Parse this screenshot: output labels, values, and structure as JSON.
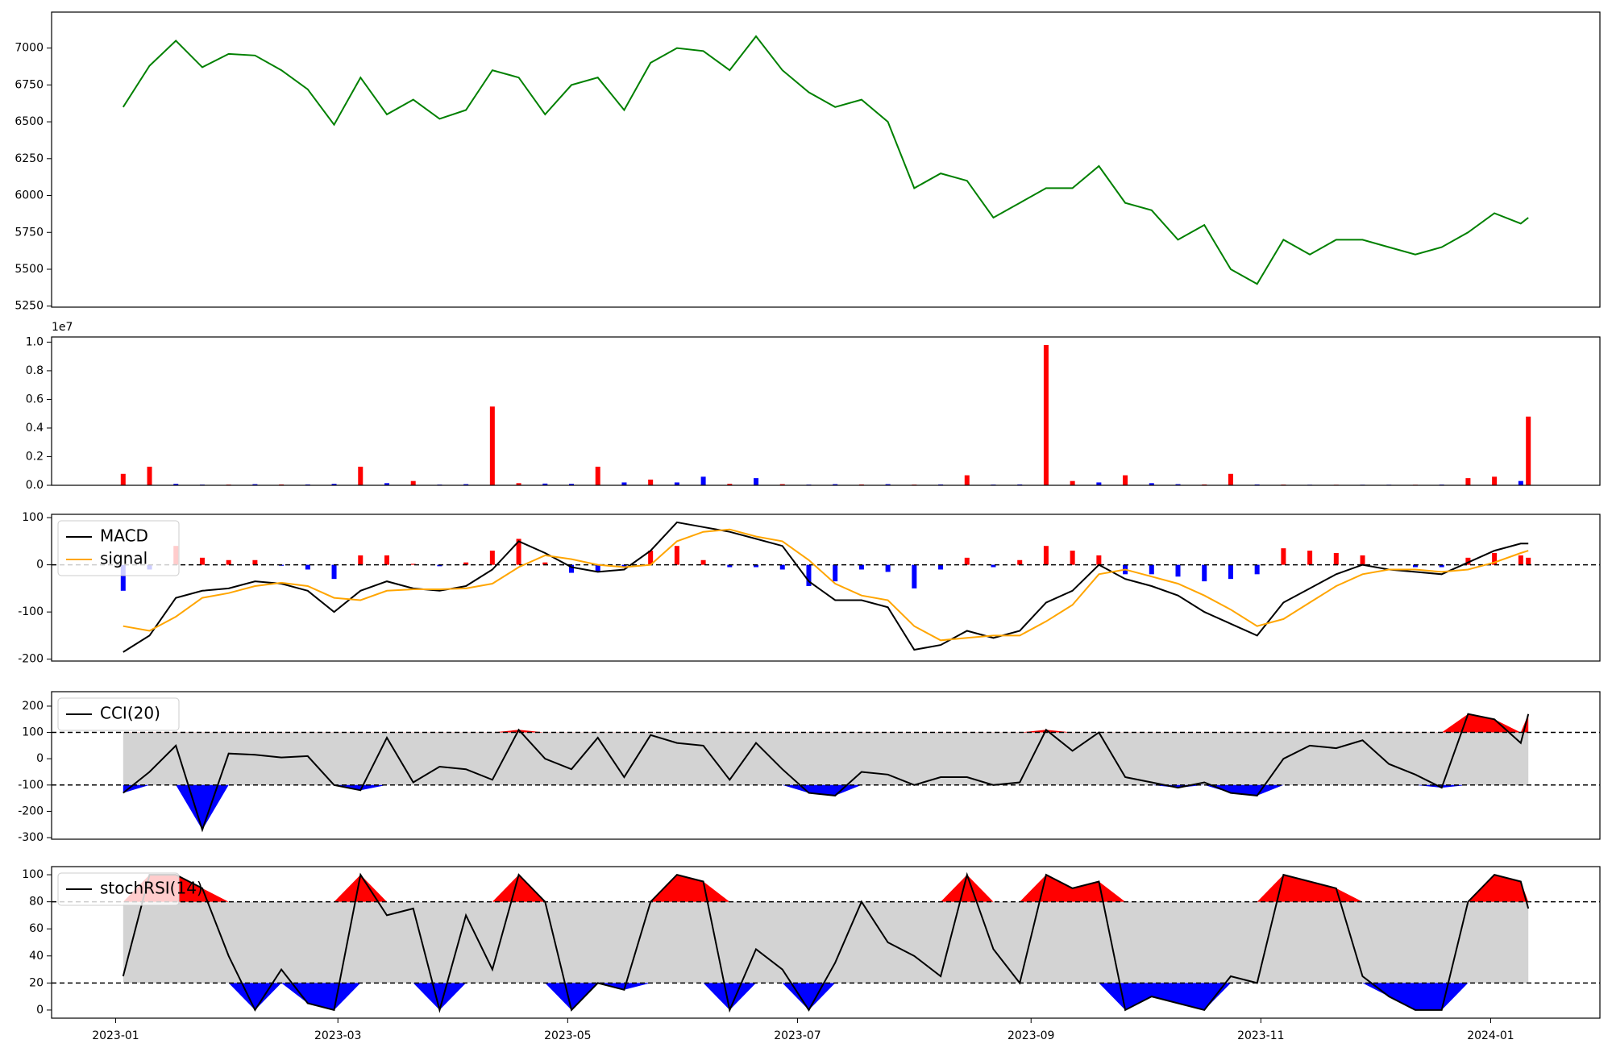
{
  "chart_data": [
    {
      "type": "line",
      "x": [
        "2023-01-03",
        "2023-01-10",
        "2023-01-17",
        "2023-01-24",
        "2023-01-31",
        "2023-02-07",
        "2023-02-14",
        "2023-02-21",
        "2023-02-28",
        "2023-03-07",
        "2023-03-14",
        "2023-03-21",
        "2023-03-28",
        "2023-04-04",
        "2023-04-11",
        "2023-04-18",
        "2023-04-25",
        "2023-05-02",
        "2023-05-09",
        "2023-05-16",
        "2023-05-23",
        "2023-05-30",
        "2023-06-06",
        "2023-06-13",
        "2023-06-20",
        "2023-06-27",
        "2023-07-04",
        "2023-07-11",
        "2023-07-18",
        "2023-07-25",
        "2023-08-01",
        "2023-08-08",
        "2023-08-15",
        "2023-08-22",
        "2023-08-29",
        "2023-09-05",
        "2023-09-12",
        "2023-09-19",
        "2023-09-26",
        "2023-10-03",
        "2023-10-10",
        "2023-10-17",
        "2023-10-24",
        "2023-10-31",
        "2023-11-07",
        "2023-11-14",
        "2023-11-21",
        "2023-11-28",
        "2023-12-05",
        "2023-12-12",
        "2023-12-19",
        "2023-12-26",
        "2024-01-02",
        "2024-01-09",
        "2024-01-11"
      ],
      "xlim": [
        "2022-12-15",
        "2024-01-30"
      ],
      "series": [
        {
          "color": "#008000",
          "values": [
            6600,
            6880,
            7050,
            6870,
            6960,
            6950,
            6850,
            6720,
            6480,
            6800,
            6550,
            6650,
            6520,
            6580,
            6850,
            6800,
            6550,
            6750,
            6800,
            6580,
            6900,
            7000,
            6980,
            6850,
            7080,
            6850,
            6700,
            6600,
            6650,
            6500,
            6050,
            6150,
            6100,
            5850,
            5950,
            6050,
            6050,
            6200,
            5950,
            5900,
            5700,
            5800,
            5500,
            5400,
            5700,
            5600,
            5700,
            5700,
            5650,
            5600,
            5650,
            5750,
            5880,
            5810,
            5850
          ]
        }
      ],
      "ylim": [
        5243,
        7244
      ],
      "yticks": [
        5250,
        5500,
        5750,
        6000,
        6250,
        6500,
        6750,
        7000
      ]
    },
    {
      "type": "bar",
      "values": [
        800000,
        1300000,
        100000,
        50000,
        50000,
        80000,
        60000,
        60000,
        100000,
        1300000,
        150000,
        300000,
        50000,
        80000,
        5500000,
        150000,
        120000,
        100000,
        1300000,
        200000,
        400000,
        200000,
        600000,
        100000,
        500000,
        80000,
        50000,
        80000,
        60000,
        80000,
        50000,
        60000,
        700000,
        50000,
        60000,
        9800000,
        300000,
        200000,
        700000,
        150000,
        80000,
        60000,
        800000,
        60000,
        50000,
        40000,
        40000,
        40000,
        40000,
        40000,
        50000,
        500000,
        600000,
        300000,
        4800000
      ],
      "colors": [
        "red",
        "red",
        "blue",
        "blue",
        "red",
        "blue",
        "red",
        "blue",
        "blue",
        "red",
        "blue",
        "red",
        "blue",
        "blue",
        "red",
        "red",
        "blue",
        "blue",
        "red",
        "blue",
        "red",
        "blue",
        "blue",
        "red",
        "blue",
        "red",
        "blue",
        "blue",
        "red",
        "blue",
        "red",
        "blue",
        "red",
        "blue",
        "blue",
        "red",
        "red",
        "blue",
        "red",
        "blue",
        "blue",
        "red",
        "red",
        "blue",
        "red",
        "blue",
        "red",
        "blue",
        "blue",
        "red",
        "blue",
        "red",
        "red",
        "blue",
        "red"
      ],
      "ylim": [
        0,
        10360000
      ],
      "yticks": [
        {
          "value": 0,
          "label": "0.0"
        },
        {
          "value": 2000000,
          "label": "0.2"
        },
        {
          "value": 4000000,
          "label": "0.4"
        },
        {
          "value": 6000000,
          "label": "0.6"
        },
        {
          "value": 8000000,
          "label": "0.8"
        },
        {
          "value": 10000000,
          "label": "1.0"
        }
      ],
      "offset_label": "1e7"
    },
    {
      "type": "macd",
      "series": [
        {
          "name": "MACD",
          "color": "#000000",
          "values": [
            -185,
            -150,
            -70,
            -55,
            -50,
            -35,
            -40,
            -55,
            -100,
            -55,
            -35,
            -50,
            -55,
            -45,
            -10,
            50,
            25,
            -5,
            -15,
            -10,
            30,
            90,
            80,
            70,
            55,
            40,
            -35,
            -75,
            -75,
            -90,
            -180,
            -170,
            -140,
            -155,
            -140,
            -80,
            -55,
            0,
            -30,
            -45,
            -65,
            -100,
            -125,
            -150,
            -80,
            -50,
            -20,
            0,
            -10,
            -15,
            -20,
            5,
            30,
            45,
            45
          ]
        },
        {
          "name": "signal",
          "color": "#ffa500",
          "values": [
            -130,
            -140,
            -110,
            -70,
            -60,
            -45,
            -38,
            -45,
            -70,
            -75,
            -55,
            -52,
            -52,
            -50,
            -40,
            -5,
            20,
            12,
            0,
            -5,
            0,
            50,
            70,
            75,
            60,
            50,
            10,
            -40,
            -65,
            -75,
            -130,
            -160,
            -155,
            -150,
            -150,
            -120,
            -85,
            -20,
            -10,
            -25,
            -40,
            -65,
            -95,
            -130,
            -115,
            -80,
            -45,
            -20,
            -10,
            -10,
            -15,
            -10,
            5,
            25,
            30
          ]
        }
      ],
      "histogram": [
        -55,
        -10,
        40,
        15,
        10,
        10,
        -2,
        -10,
        -30,
        20,
        20,
        2,
        -3,
        5,
        30,
        55,
        5,
        -17,
        -15,
        -5,
        30,
        40,
        10,
        -5,
        -5,
        -10,
        -45,
        -35,
        -10,
        -15,
        -50,
        -10,
        15,
        -5,
        10,
        40,
        30,
        20,
        -20,
        -20,
        -25,
        -35,
        -30,
        -20,
        35,
        30,
        25,
        20,
        0,
        -5,
        -5,
        15,
        25,
        20,
        15
      ],
      "pos_color": "#ff0000",
      "neg_color": "#0000ff",
      "hline": 0,
      "ylim": [
        -204,
        107
      ],
      "yticks": [
        -200,
        -100,
        0,
        100
      ],
      "legend": "upper left"
    },
    {
      "type": "oscillator",
      "series": [
        {
          "name": "CCI(20)",
          "color": "#000000",
          "values": [
            -130,
            -50,
            50,
            -270,
            20,
            15,
            5,
            10,
            -100,
            -120,
            80,
            -90,
            -30,
            -40,
            -80,
            110,
            0,
            -40,
            80,
            -70,
            90,
            60,
            50,
            -80,
            60,
            -40,
            -130,
            -140,
            -50,
            -60,
            -100,
            -70,
            -70,
            -100,
            -90,
            110,
            30,
            100,
            -70,
            -90,
            -110,
            -90,
            -130,
            -140,
            0,
            50,
            40,
            70,
            -20,
            -60,
            -110,
            170,
            150,
            60,
            170
          ]
        }
      ],
      "thresholds": [
        -100,
        100
      ],
      "band_color": "#d3d3d3",
      "high_color": "#ff0000",
      "low_color": "#0000ff",
      "ylim": [
        -306,
        255
      ],
      "yticks": [
        -300,
        -200,
        -100,
        0,
        100,
        200
      ],
      "legend": "upper left"
    },
    {
      "type": "oscillator",
      "series": [
        {
          "name": "stochRSI(14)",
          "color": "#000000",
          "values": [
            25,
            100,
            100,
            90,
            40,
            0,
            30,
            5,
            0,
            100,
            70,
            75,
            0,
            70,
            30,
            100,
            80,
            0,
            20,
            15,
            80,
            100,
            95,
            0,
            45,
            30,
            0,
            35,
            80,
            50,
            40,
            25,
            100,
            45,
            20,
            100,
            90,
            95,
            0,
            10,
            5,
            0,
            25,
            20,
            100,
            95,
            90,
            25,
            10,
            0,
            0,
            80,
            100,
            95,
            75
          ]
        }
      ],
      "thresholds": [
        20,
        80
      ],
      "band_color": "#d3d3d3",
      "high_color": "#ff0000",
      "low_color": "#0000ff",
      "ylim": [
        -6,
        106
      ],
      "yticks": [
        0,
        20,
        40,
        60,
        80,
        100
      ],
      "legend": "upper left",
      "xticks": [
        {
          "value": "2023-01-01",
          "label": "2023-01"
        },
        {
          "value": "2023-03-01",
          "label": "2023-03"
        },
        {
          "value": "2023-05-01",
          "label": "2023-05"
        },
        {
          "value": "2023-07-01",
          "label": "2023-07"
        },
        {
          "value": "2023-09-01",
          "label": "2023-09"
        },
        {
          "value": "2023-11-01",
          "label": "2023-11"
        },
        {
          "value": "2024-01-01",
          "label": "2024-01"
        }
      ]
    }
  ]
}
